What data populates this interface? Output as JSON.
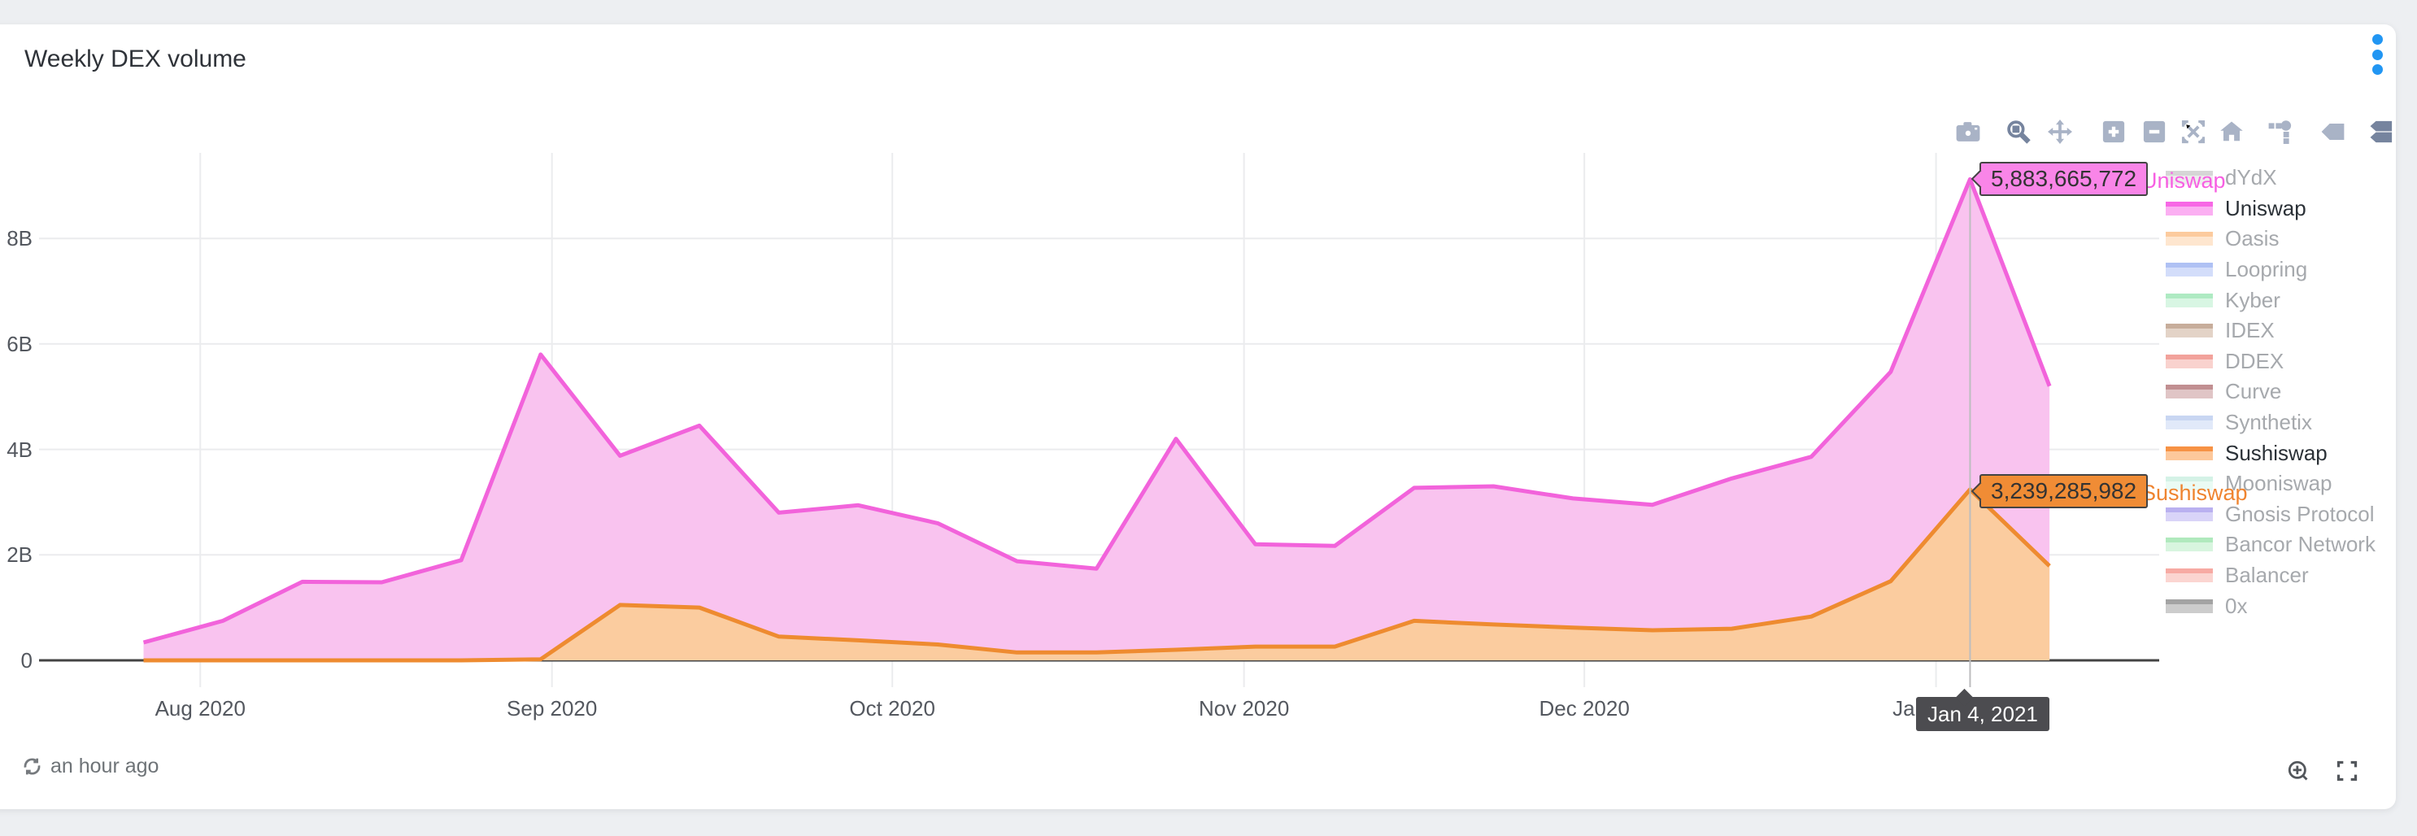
{
  "card": {
    "title": "Weekly DEX volume"
  },
  "colors": {
    "page_bg": "#edeff2",
    "card_bg": "#ffffff",
    "accent_blue": "#2196f3",
    "grid": "#ebecee",
    "axis_line": "#444444",
    "tick_text": "#54585f",
    "legend_active": "#2b3137",
    "legend_inactive": "#a6a9ad",
    "mb_icon": "#a9b3c6",
    "mb_icon_active": "#76849e",
    "footer_text": "#6e7377",
    "hover_date_bg": "#4c4c50",
    "uniswap_line": "#f263db",
    "uniswap_fill": "#f9c3ef",
    "sushiswap_line": "#ee8b30",
    "sushiswap_fill": "#fbcc9f"
  },
  "chart_data": {
    "type": "area",
    "stacked": true,
    "title": "Weekly DEX volume",
    "units": "USD, billions",
    "x": [
      "2020-07-27",
      "2020-08-03",
      "2020-08-10",
      "2020-08-17",
      "2020-08-24",
      "2020-08-31",
      "2020-09-07",
      "2020-09-14",
      "2020-09-21",
      "2020-09-28",
      "2020-10-05",
      "2020-10-12",
      "2020-10-19",
      "2020-10-26",
      "2020-11-02",
      "2020-11-09",
      "2020-11-16",
      "2020-11-23",
      "2020-11-30",
      "2020-12-07",
      "2020-12-14",
      "2020-12-21",
      "2020-12-28",
      "2021-01-04",
      "2021-01-11"
    ],
    "series": [
      {
        "name": "Sushiswap",
        "color": "#ee8b30",
        "fill": "#fbcc9f",
        "values": [
          0,
          0,
          0,
          0,
          0,
          0.02,
          1.05,
          1.0,
          0.45,
          0.38,
          0.3,
          0.15,
          0.15,
          0.2,
          0.26,
          0.26,
          0.75,
          0.68,
          0.62,
          0.57,
          0.6,
          0.83,
          1.5,
          3.2393,
          1.79
        ]
      },
      {
        "name": "Uniswap",
        "color": "#f263db",
        "fill": "#f9c3ef",
        "values": [
          0.34,
          0.75,
          1.49,
          1.48,
          1.9,
          5.78,
          2.83,
          3.45,
          2.35,
          2.56,
          2.3,
          1.73,
          1.59,
          4.0,
          1.94,
          1.91,
          2.52,
          2.62,
          2.45,
          2.38,
          2.85,
          3.03,
          3.97,
          5.8837,
          3.41
        ]
      }
    ],
    "zero_or_hidden_series": [
      "dYdX",
      "Oasis",
      "Loopring",
      "Kyber",
      "IDEX",
      "DDEX",
      "Curve",
      "Synthetix",
      "Mooniswap",
      "Gnosis Protocol",
      "Bancor Network",
      "Balancer",
      "0x"
    ],
    "yticks": [
      {
        "v": 0,
        "label": "0"
      },
      {
        "v": 2,
        "label": "2B"
      },
      {
        "v": 4,
        "label": "4B"
      },
      {
        "v": 6,
        "label": "6B"
      },
      {
        "v": 8,
        "label": "8B"
      }
    ],
    "xticks": [
      {
        "date": "2020-08-01",
        "label": "Aug 2020"
      },
      {
        "date": "2020-09-01",
        "label": "Sep 2020"
      },
      {
        "date": "2020-10-01",
        "label": "Oct 2020"
      },
      {
        "date": "2020-11-01",
        "label": "Nov 2020"
      },
      {
        "date": "2020-12-01",
        "label": "Dec 2020"
      },
      {
        "date": "2021-01-01",
        "label": "Jan 2021"
      }
    ],
    "ylim": [
      -0.5,
      9.65
    ],
    "xlim": [
      "2020-07-18",
      "2021-01-20"
    ],
    "grid": true,
    "legend_position": "right",
    "crosshair_date": "2021-01-04"
  },
  "legend": {
    "items": [
      {
        "label": "dYdX",
        "line": "#d6d6d6",
        "fill": "#ededed",
        "active": false
      },
      {
        "label": "Uniswap",
        "line": "#f767e5",
        "fill": "#fbaff2",
        "active": true
      },
      {
        "label": "Oasis",
        "line": "#fccb9e",
        "fill": "#fee6cf",
        "active": false
      },
      {
        "label": "Loopring",
        "line": "#afc1f4",
        "fill": "#d3ddfa",
        "active": false
      },
      {
        "label": "Kyber",
        "line": "#aeeac2",
        "fill": "#d8f6e3",
        "active": false
      },
      {
        "label": "IDEX",
        "line": "#c7ad9b",
        "fill": "#e3d3c7",
        "active": false
      },
      {
        "label": "DDEX",
        "line": "#f2a29b",
        "fill": "#f9d2ce",
        "active": false
      },
      {
        "label": "Curve",
        "line": "#c18f91",
        "fill": "#e0c5c6",
        "active": false
      },
      {
        "label": "Synthetix",
        "line": "#c8d6f2",
        "fill": "#e1e9f9",
        "active": false
      },
      {
        "label": "Sushiswap",
        "line": "#f79244",
        "fill": "#fdc89b",
        "active": true
      },
      {
        "label": "Mooniswap",
        "line": "#d4f2e6",
        "fill": "#eafbf4",
        "active": false
      },
      {
        "label": "Gnosis Protocol",
        "line": "#b9b0f0",
        "fill": "#d9d4f8",
        "active": false
      },
      {
        "label": "Bancor Network",
        "line": "#b0e9bd",
        "fill": "#d8f5df",
        "active": false
      },
      {
        "label": "Balancer",
        "line": "#f7aaa3",
        "fill": "#fbd5d1",
        "active": false
      },
      {
        "label": "0x",
        "line": "#a3a3a3",
        "fill": "#cccccc",
        "active": false
      }
    ]
  },
  "tooltips": {
    "uniswap": {
      "value": "5,883,665,772",
      "trace": "Uniswap"
    },
    "sushiswap": {
      "value": "3,239,285,982",
      "trace": "Sushiswap"
    },
    "date": {
      "label": "Jan 4, 2021"
    }
  },
  "modebar": {
    "items": [
      {
        "name": "camera",
        "active": false
      },
      {
        "name": "zoom",
        "active": true
      },
      {
        "name": "pan",
        "active": false
      },
      {
        "name": "zoom-in",
        "active": false
      },
      {
        "name": "zoom-out",
        "active": false
      },
      {
        "name": "autoscale",
        "active": false
      },
      {
        "name": "reset-home",
        "active": false
      },
      {
        "name": "spikelines",
        "active": false
      },
      {
        "name": "hover-closest",
        "active": false
      },
      {
        "name": "hover-compare",
        "active": true
      }
    ]
  },
  "footer": {
    "updated": "an hour ago"
  }
}
